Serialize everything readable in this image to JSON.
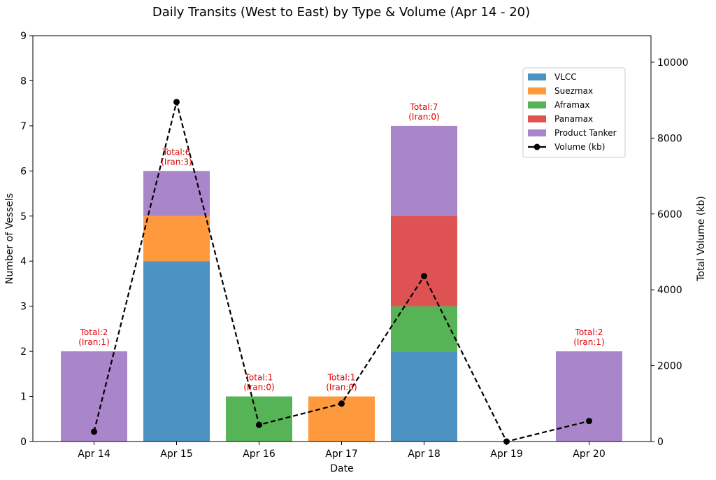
{
  "chart_data": {
    "type": "bar",
    "stacked": true,
    "title": "Daily Transits (West to East) by Type & Volume (Apr 14 - 20)",
    "xlabel": "Date",
    "ylabel": "Number of Vessels",
    "y2label": "Total Volume (kb)",
    "ylim": [
      0,
      9
    ],
    "y2lim": [
      0,
      10700
    ],
    "yticks": [
      0,
      1,
      2,
      3,
      4,
      5,
      6,
      7,
      8,
      9
    ],
    "y2ticks": [
      0,
      2000,
      4000,
      6000,
      8000,
      10000
    ],
    "categories": [
      "Apr 14",
      "Apr 15",
      "Apr 16",
      "Apr 17",
      "Apr 18",
      "Apr 19",
      "Apr 20"
    ],
    "series": [
      {
        "name": "VLCC",
        "color": "#1f77b4",
        "values": [
          0,
          4,
          0,
          0,
          2,
          0,
          0
        ]
      },
      {
        "name": "Suezmax",
        "color": "#ff7f0e",
        "values": [
          0,
          1,
          0,
          1,
          0,
          0,
          0
        ]
      },
      {
        "name": "Aframax",
        "color": "#2ca02c",
        "values": [
          0,
          0,
          1,
          0,
          1,
          0,
          0
        ]
      },
      {
        "name": "Panamax",
        "color": "#d62728",
        "values": [
          0,
          0,
          0,
          0,
          2,
          0,
          0
        ]
      },
      {
        "name": "Product Tanker",
        "color": "#9467bd",
        "values": [
          2,
          1,
          0,
          0,
          2,
          0,
          2
        ]
      }
    ],
    "line_series": {
      "name": "Volume (kb)",
      "color": "#000000",
      "axis": "right",
      "style": "dashed",
      "marker": "circle",
      "values": [
        260,
        8950,
        440,
        1000,
        4360,
        0,
        540
      ]
    },
    "annotations": [
      {
        "category": "Apr 14",
        "line1": "Total:2",
        "line2": "(Iran:1)"
      },
      {
        "category": "Apr 15",
        "line1": "Total:6",
        "line2": "(Iran:3)"
      },
      {
        "category": "Apr 16",
        "line1": "Total:1",
        "line2": "(Iran:0)"
      },
      {
        "category": "Apr 17",
        "line1": "Total:1",
        "line2": "(Iran:0)"
      },
      {
        "category": "Apr 18",
        "line1": "Total:7",
        "line2": "(Iran:0)"
      },
      {
        "category": "Apr 20",
        "line1": "Total:2",
        "line2": "(Iran:1)"
      }
    ],
    "legend_position": "upper-right",
    "grid": false
  }
}
